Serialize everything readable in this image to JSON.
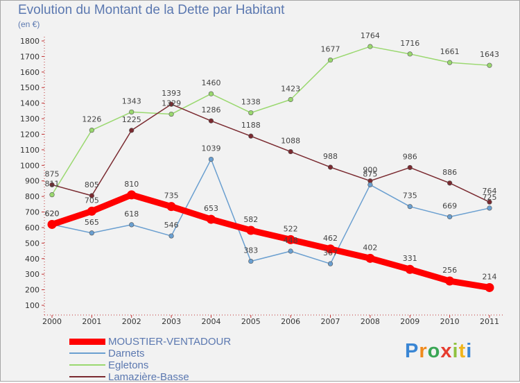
{
  "chart_data": {
    "type": "line",
    "title": "Evolution du Montant de la Dette par Habitant",
    "unit_label": "(en €)",
    "x": [
      "2000",
      "2001",
      "2002",
      "2003",
      "2004",
      "2005",
      "2006",
      "2007",
      "2008",
      "2009",
      "2010",
      "2011"
    ],
    "ylim": [
      100,
      1800
    ],
    "yticks": [
      100,
      200,
      300,
      400,
      500,
      600,
      700,
      800,
      900,
      1000,
      1100,
      1200,
      1300,
      1400,
      1500,
      1600,
      1700,
      1800
    ],
    "grid": false,
    "legend_position": "bottom-left",
    "series": [
      {
        "name": "MOUSTIER-VENTADOUR",
        "color": "#ff0000",
        "values": [
          620,
          705,
          810,
          735,
          653,
          582,
          522,
          462,
          402,
          331,
          256,
          214
        ]
      },
      {
        "name": "Darnets",
        "color": "#6a9fd0",
        "values": [
          620,
          565,
          618,
          546,
          1039,
          383,
          448,
          367,
          875,
          735,
          669,
          725
        ]
      },
      {
        "name": "Egletons",
        "color": "#9ad86f",
        "values": [
          811,
          1226,
          1343,
          1329,
          1460,
          1338,
          1423,
          1677,
          1764,
          1716,
          1661,
          1643
        ]
      },
      {
        "name": "Lamazière-Basse",
        "color": "#7a2a30",
        "values": [
          875,
          805,
          1225,
          1393,
          1286,
          1188,
          1088,
          988,
          900,
          986,
          886,
          764
        ]
      }
    ]
  },
  "logo": {
    "text": "Proxiti",
    "colors": [
      "#3a86d4",
      "#f08a1c",
      "#3aa655",
      "#e63c2f",
      "#8fc23f",
      "#f0b51c",
      "#3a86d4"
    ]
  }
}
